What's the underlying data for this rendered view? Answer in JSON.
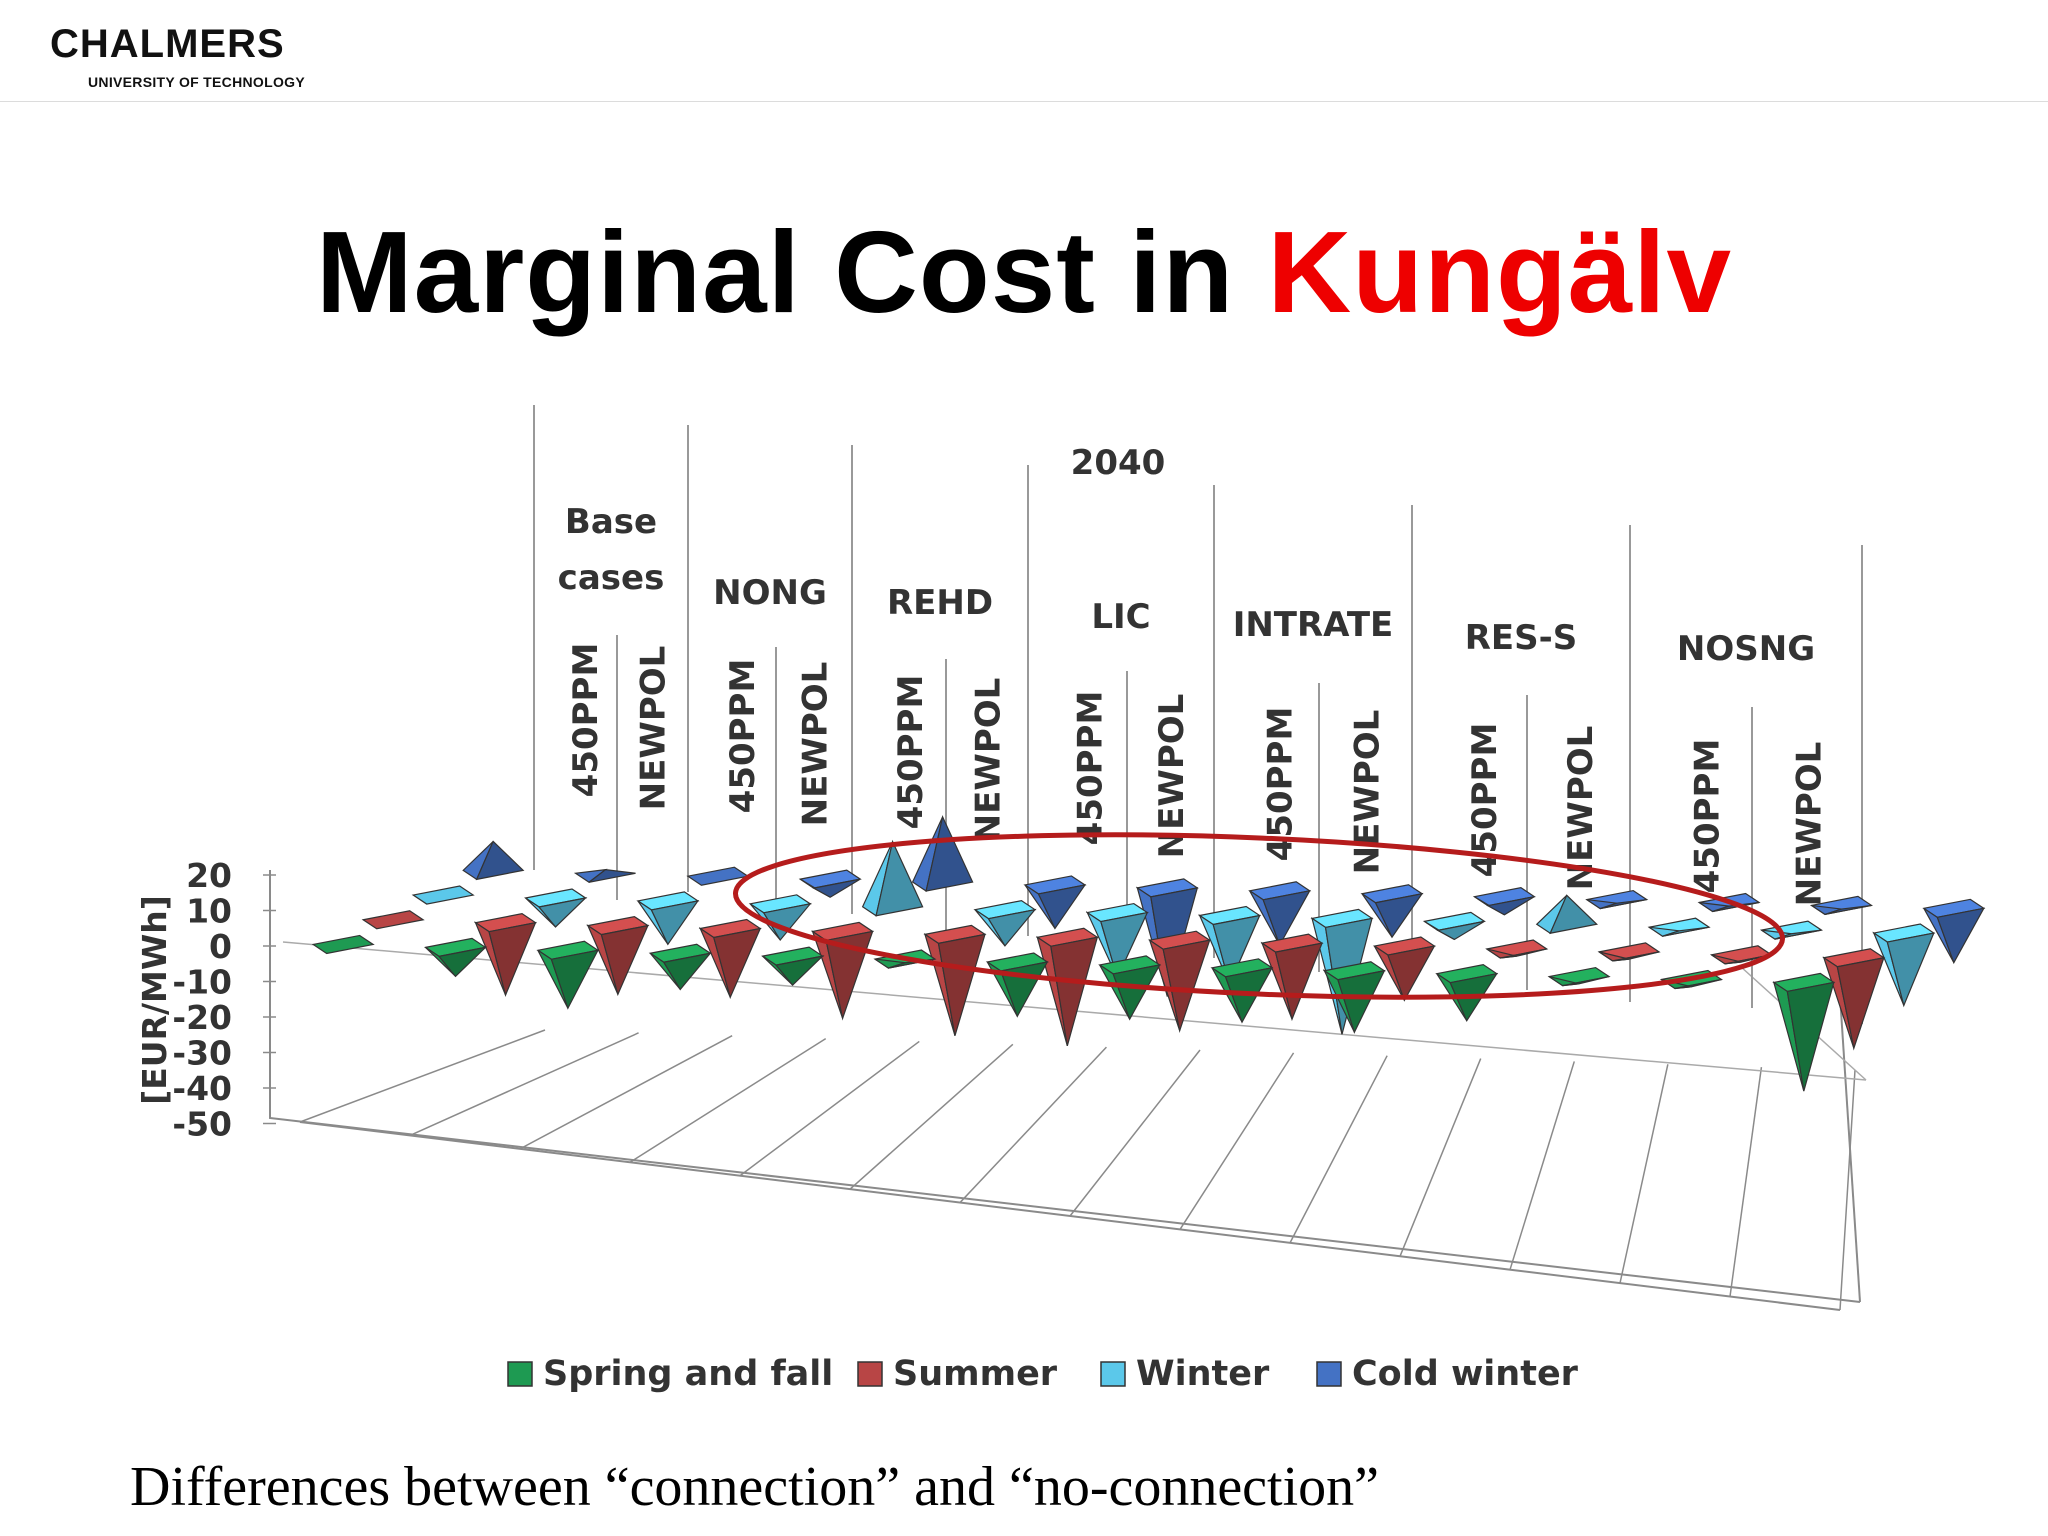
{
  "header": {
    "logo_name": "CHALMERS",
    "logo_sub": "UNIVERSITY OF TECHNOLOGY"
  },
  "slide": {
    "title_main": "Marginal Cost in ",
    "title_highlight": "Kungälv",
    "title_highlight_color": "#ee0000",
    "caption": "Differences between “connection” and “no-connection”"
  },
  "chart_data": {
    "type": "bar",
    "chart_style": "3D cone/pyramid",
    "year_label": "2040",
    "ylabel": "[EUR/MWh]",
    "ylim": [
      -50,
      20
    ],
    "yticks": [
      20,
      10,
      0,
      -10,
      -20,
      -30,
      -40,
      -50
    ],
    "grid": true,
    "legend_position": "bottom",
    "groups": [
      {
        "label": "Base cases",
        "categories": [
          "450PPM",
          "NEWPOL"
        ]
      },
      {
        "label": "NONG",
        "categories": [
          "450PPM",
          "NEWPOL"
        ]
      },
      {
        "label": "REHD",
        "categories": [
          "450PPM",
          "NEWPOL"
        ]
      },
      {
        "label": "LIC",
        "categories": [
          "450PPM",
          "NEWPOL"
        ]
      },
      {
        "label": "INTRATE",
        "categories": [
          "450PPM",
          "NEWPOL"
        ]
      },
      {
        "label": "RES-S",
        "categories": [
          "450PPM",
          "NEWPOL"
        ]
      },
      {
        "label": "NOSNG",
        "categories": [
          "450PPM",
          "NEWPOL"
        ]
      }
    ],
    "categories": [
      "450PPM",
      "NEWPOL",
      "450PPM",
      "NEWPOL",
      "450PPM",
      "NEWPOL",
      "450PPM",
      "NEWPOL",
      "450PPM",
      "NEWPOL",
      "450PPM",
      "NEWPOL",
      "450PPM",
      "NEWPOL"
    ],
    "series": [
      {
        "name": "Spring and fall",
        "color": "#1e9a52",
        "values": [
          0,
          -8,
          -16,
          -10,
          -8,
          -1,
          -15,
          -15,
          -15,
          -17,
          -13,
          -2,
          -2,
          -30
        ]
      },
      {
        "name": "Summer",
        "color": "#b84545",
        "values": [
          0,
          -20,
          -19,
          -19,
          -24,
          -28,
          -30,
          -25,
          -21,
          -15,
          -2,
          -2,
          -2,
          -25
        ]
      },
      {
        "name": "Winter",
        "color": "#5bc8ea",
        "values": [
          0,
          -8,
          -12,
          -10,
          18,
          -10,
          -18,
          -19,
          -32,
          -5,
          8,
          -1,
          -1,
          -20
        ]
      },
      {
        "name": "Cold winter",
        "color": "#4472c4",
        "values": [
          8,
          1,
          0,
          -5,
          18,
          -12,
          -30,
          -15,
          -12,
          -5,
          -1,
          -1,
          -1,
          -15
        ]
      }
    ],
    "annotation": "red ellipse highlighting NONG NEWPOL through RES-S 450PPM"
  }
}
